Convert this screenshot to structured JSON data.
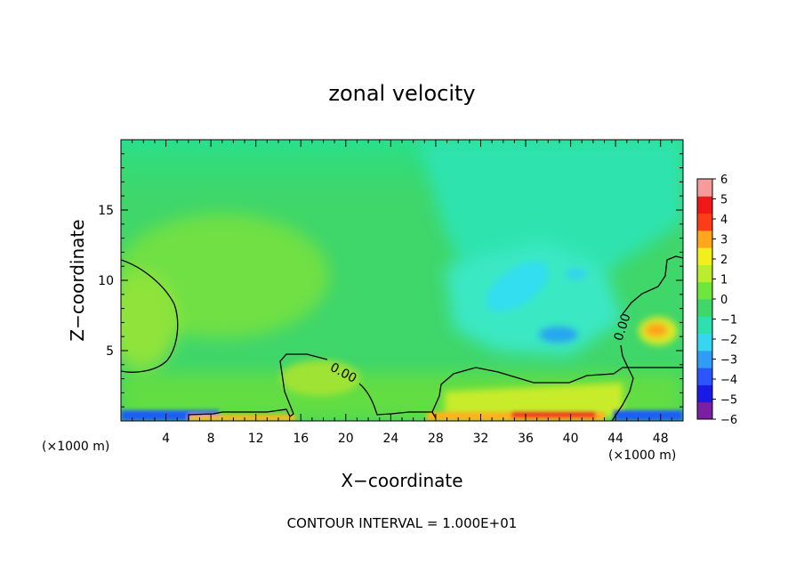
{
  "chart_data": {
    "type": "heatmap",
    "title": "zonal velocity",
    "xlabel": "X−coordinate",
    "ylabel": "Z−coordinate",
    "x_unit_left": "(×1000 m)",
    "x_unit_right": "(×1000 m)",
    "xlim": [
      0,
      50
    ],
    "ylim": [
      0,
      20
    ],
    "x_ticks": [
      4,
      8,
      12,
      16,
      20,
      24,
      28,
      32,
      36,
      40,
      44,
      48
    ],
    "y_ticks": [
      5,
      10,
      15
    ],
    "colorbar": {
      "min": -6,
      "max": 6,
      "labels": [
        "6",
        "5",
        "4",
        "3",
        "2",
        "1",
        "0",
        "−1",
        "−2",
        "−3",
        "−4",
        "−5",
        "−6"
      ],
      "colors": [
        "#7a1fa2",
        "#1a1ae6",
        "#2a55ff",
        "#2f9cf5",
        "#36d6f0",
        "#2de0b0",
        "#3fd66a",
        "#6ee63c",
        "#b8ee2e",
        "#f2ef1e",
        "#ffa61a",
        "#ff3c1a",
        "#f01818",
        "#f59b9b"
      ]
    },
    "contour_labels": [
      "0.00",
      "0.00"
    ],
    "contour_interval_text": "CONTOUR INTERVAL = 1.000E+01",
    "background_color": "#3fd66a"
  }
}
